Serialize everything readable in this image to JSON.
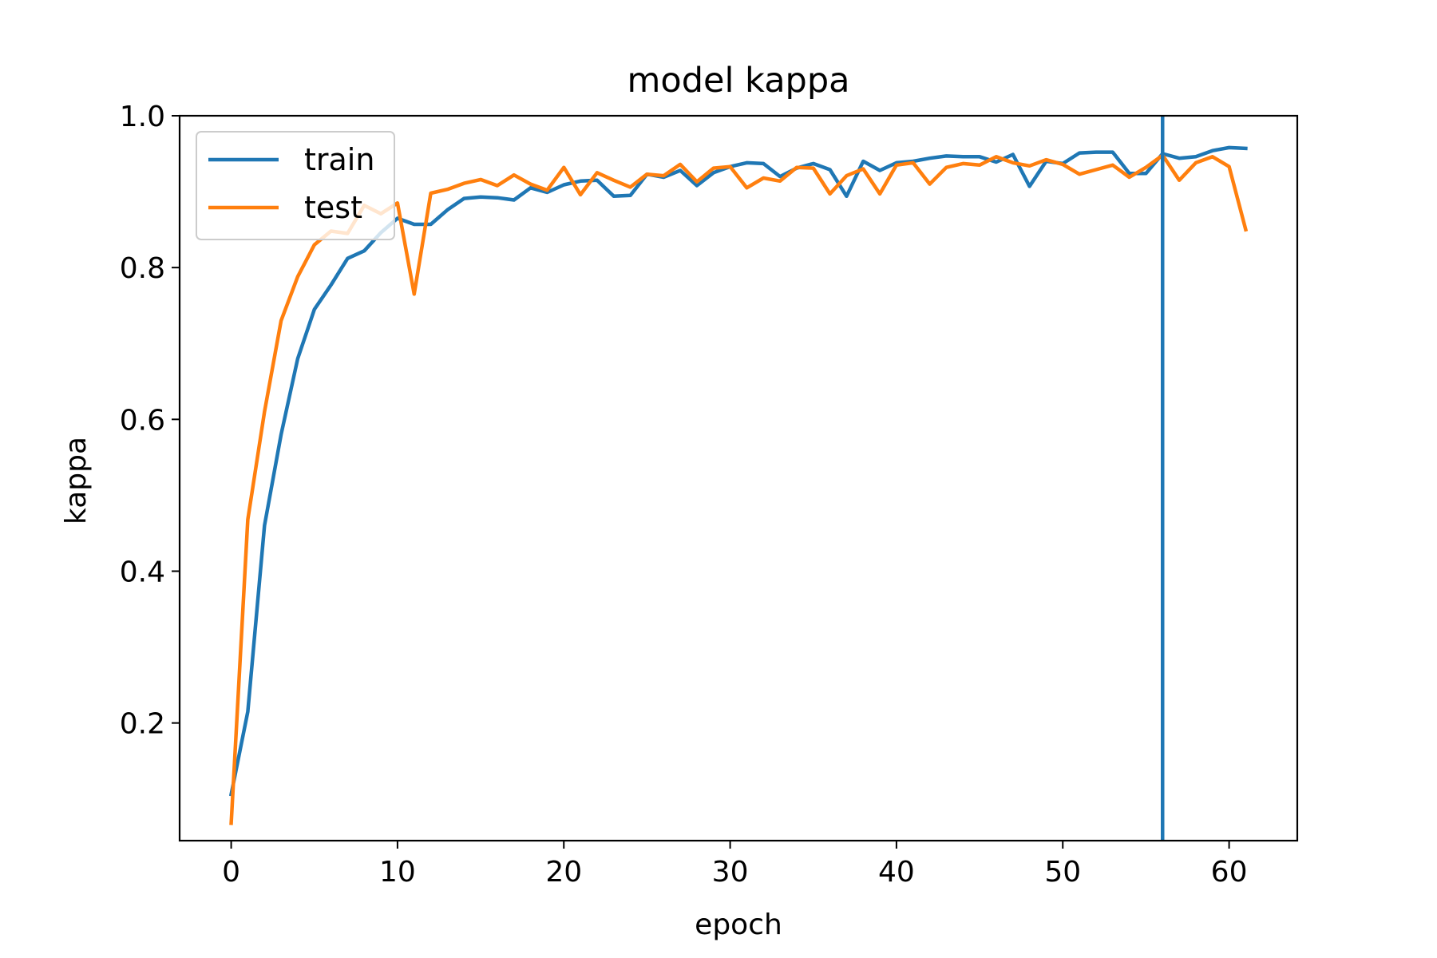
{
  "chart_data": {
    "type": "line",
    "title": "model kappa",
    "xlabel": "epoch",
    "ylabel": "kappa",
    "xlim": [
      -3.1,
      64.1
    ],
    "ylim": [
      0.045,
      1.0
    ],
    "xticks": [
      0,
      10,
      20,
      30,
      40,
      50,
      60
    ],
    "yticks": [
      0.2,
      0.4,
      0.6,
      0.8,
      1.0
    ],
    "ytick_labels": [
      "0.2",
      "0.4",
      "0.6",
      "0.8",
      "1.0"
    ],
    "grid": false,
    "legend_position": "top-left",
    "x": [
      0,
      1,
      2,
      3,
      4,
      5,
      6,
      7,
      8,
      9,
      10,
      11,
      12,
      13,
      14,
      15,
      16,
      17,
      18,
      19,
      20,
      21,
      22,
      23,
      24,
      25,
      26,
      27,
      28,
      29,
      30,
      31,
      32,
      33,
      34,
      35,
      36,
      37,
      38,
      39,
      40,
      41,
      42,
      43,
      44,
      45,
      46,
      47,
      48,
      49,
      50,
      51,
      52,
      53,
      54,
      55,
      56,
      57,
      58,
      59,
      60,
      61
    ],
    "series": [
      {
        "name": "train",
        "color": "#1f77b4",
        "values": [
          0.106,
          0.215,
          0.46,
          0.58,
          0.68,
          0.745,
          0.777,
          0.812,
          0.822,
          0.846,
          0.865,
          0.857,
          0.857,
          0.876,
          0.891,
          0.893,
          0.892,
          0.889,
          0.905,
          0.899,
          0.909,
          0.914,
          0.915,
          0.894,
          0.895,
          0.923,
          0.919,
          0.928,
          0.908,
          0.925,
          0.933,
          0.938,
          0.937,
          0.92,
          0.931,
          0.937,
          0.929,
          0.894,
          0.94,
          0.928,
          0.938,
          0.94,
          0.944,
          0.947,
          0.946,
          0.946,
          0.939,
          0.949,
          0.907,
          0.94,
          0.937,
          0.951,
          0.952,
          0.952,
          0.924,
          0.924,
          0.95,
          0.944,
          0.946,
          0.954,
          0.958,
          0.957
        ]
      },
      {
        "name": "test",
        "color": "#ff7f0e",
        "values": [
          0.068,
          0.468,
          0.61,
          0.73,
          0.788,
          0.83,
          0.848,
          0.845,
          0.882,
          0.871,
          0.885,
          0.765,
          0.898,
          0.903,
          0.911,
          0.916,
          0.908,
          0.922,
          0.91,
          0.902,
          0.932,
          0.896,
          0.925,
          0.915,
          0.906,
          0.923,
          0.921,
          0.936,
          0.913,
          0.931,
          0.933,
          0.905,
          0.918,
          0.914,
          0.932,
          0.931,
          0.897,
          0.921,
          0.93,
          0.897,
          0.935,
          0.938,
          0.91,
          0.932,
          0.937,
          0.935,
          0.946,
          0.938,
          0.934,
          0.942,
          0.936,
          0.923,
          0.929,
          0.935,
          0.919,
          0.932,
          0.948,
          0.915,
          0.938,
          0.946,
          0.933,
          0.85
        ]
      }
    ],
    "vline": {
      "x": 56,
      "color": "#1f77b4"
    }
  }
}
